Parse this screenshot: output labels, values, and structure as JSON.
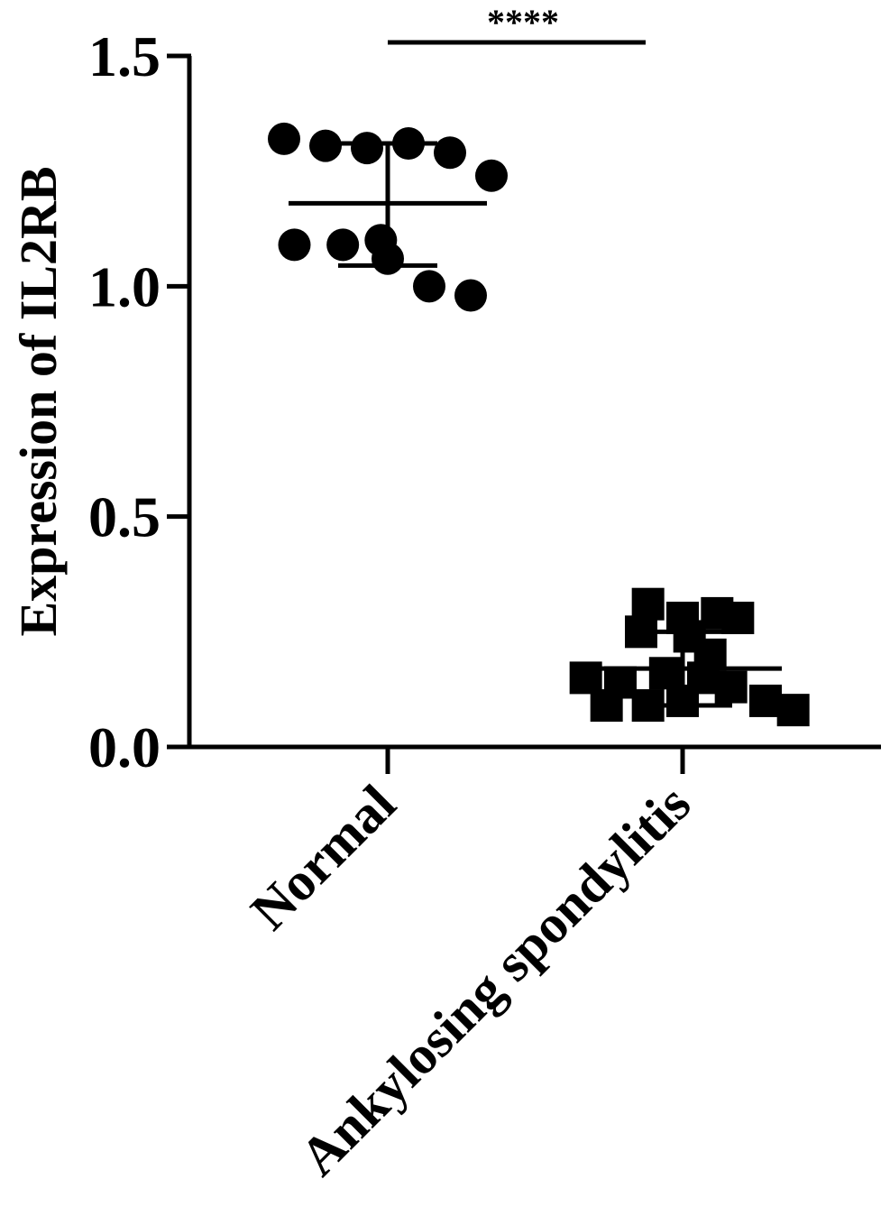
{
  "chart_data": {
    "type": "scatter",
    "ylabel": "Expression of IL2RB",
    "xlabel": "",
    "ylim": [
      0,
      1.5
    ],
    "yticks": [
      "0.0",
      "0.5",
      "1.0",
      "1.5"
    ],
    "categories": [
      "Normal",
      "Ankylosing spondylitis"
    ],
    "grid": false,
    "legend": "none",
    "significance": {
      "label": "****",
      "from": "Normal",
      "to": "Ankylosing spondylitis",
      "y": 1.54
    },
    "series": [
      {
        "category": "Normal",
        "marker": "circle",
        "mean": 1.18,
        "sd_low": 1.045,
        "sd_high": 1.31,
        "points": [
          {
            "offset": -0.3,
            "value": 1.32
          },
          {
            "offset": -0.18,
            "value": 1.305
          },
          {
            "offset": -0.06,
            "value": 1.3
          },
          {
            "offset": 0.06,
            "value": 1.31
          },
          {
            "offset": 0.18,
            "value": 1.29
          },
          {
            "offset": 0.3,
            "value": 1.24
          },
          {
            "offset": -0.27,
            "value": 1.09
          },
          {
            "offset": -0.13,
            "value": 1.09
          },
          {
            "offset": -0.02,
            "value": 1.1
          },
          {
            "offset": 0.0,
            "value": 1.06
          },
          {
            "offset": 0.12,
            "value": 1.0
          },
          {
            "offset": 0.24,
            "value": 0.98
          }
        ]
      },
      {
        "category": "Ankylosing spondylitis",
        "marker": "square",
        "mean": 0.17,
        "sd_low": 0.09,
        "sd_high": 0.25,
        "points": [
          {
            "offset": -0.1,
            "value": 0.31
          },
          {
            "offset": 0.0,
            "value": 0.28
          },
          {
            "offset": 0.1,
            "value": 0.29
          },
          {
            "offset": 0.16,
            "value": 0.28
          },
          {
            "offset": -0.12,
            "value": 0.25
          },
          {
            "offset": 0.02,
            "value": 0.24
          },
          {
            "offset": 0.08,
            "value": 0.2
          },
          {
            "offset": -0.28,
            "value": 0.15
          },
          {
            "offset": -0.18,
            "value": 0.14
          },
          {
            "offset": -0.05,
            "value": 0.16
          },
          {
            "offset": 0.06,
            "value": 0.15
          },
          {
            "offset": -0.22,
            "value": 0.09
          },
          {
            "offset": -0.1,
            "value": 0.09
          },
          {
            "offset": 0.0,
            "value": 0.1
          },
          {
            "offset": 0.14,
            "value": 0.13
          },
          {
            "offset": 0.24,
            "value": 0.1
          },
          {
            "offset": 0.32,
            "value": 0.08
          }
        ]
      }
    ]
  }
}
